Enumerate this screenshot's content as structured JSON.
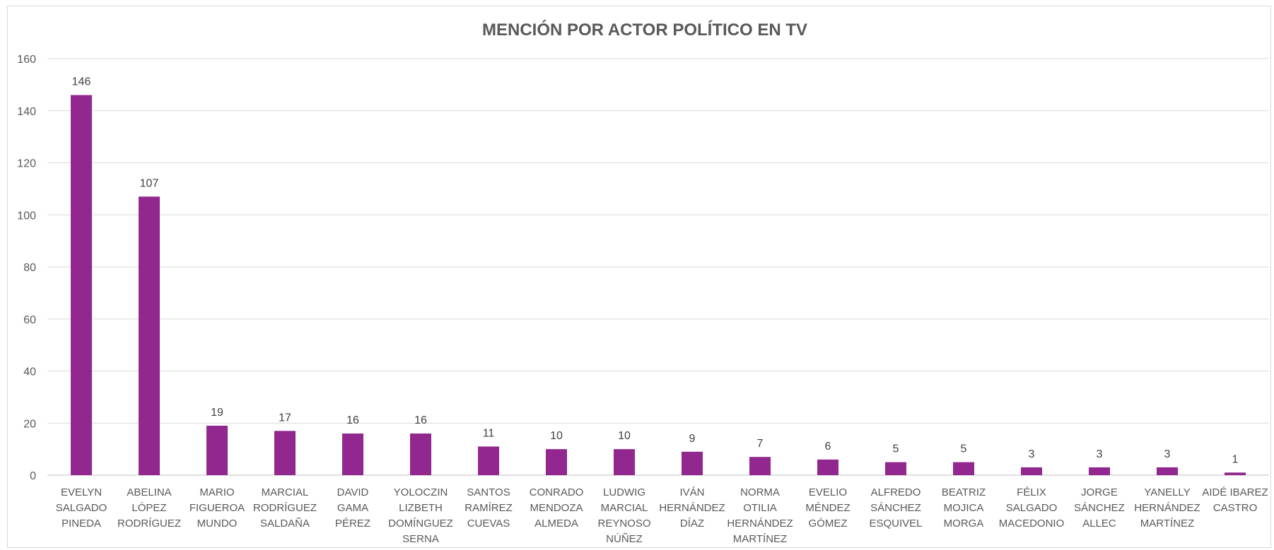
{
  "chart_data": {
    "type": "bar",
    "title": "MENCIÓN POR ACTOR POLÍTICO EN TV",
    "xlabel": "",
    "ylabel": "",
    "ylim": [
      0,
      160
    ],
    "yticks": [
      0,
      20,
      40,
      60,
      80,
      100,
      120,
      140,
      160
    ],
    "grid": true,
    "legend": "none",
    "bar_color": "#92278f",
    "categories": [
      [
        "EVELYN",
        "SALGADO",
        "PINEDA"
      ],
      [
        "ABELINA",
        "LÓPEZ",
        "RODRÍGUEZ"
      ],
      [
        "MARIO",
        "FIGUEROA",
        "MUNDO"
      ],
      [
        "MARCIAL",
        "RODRÍGUEZ",
        "SALDAÑA"
      ],
      [
        "DAVID",
        "GAMA",
        "PÉREZ"
      ],
      [
        "YOLOCZIN",
        "LIZBETH",
        "DOMÍNGUEZ",
        "SERNA"
      ],
      [
        "SANTOS",
        "RAMÍREZ",
        "CUEVAS"
      ],
      [
        "CONRADO",
        "MENDOZA",
        "ALMEDA"
      ],
      [
        "LUDWIG",
        "MARCIAL",
        "REYNOSO",
        "NÚÑEZ"
      ],
      [
        "IVÁN",
        "HERNÁNDEZ",
        "DÍAZ"
      ],
      [
        "NORMA",
        "OTILIA",
        "HERNÁNDEZ",
        "MARTÍNEZ"
      ],
      [
        "EVELIO",
        "MÉNDEZ",
        "GÓMEZ"
      ],
      [
        "ALFREDO",
        "SÁNCHEZ",
        "ESQUIVEL"
      ],
      [
        "BEATRIZ",
        "MOJICA",
        "MORGA"
      ],
      [
        "FÉLIX",
        "SALGADO",
        "MACEDONIO"
      ],
      [
        "JORGE",
        "SÁNCHEZ",
        "ALLEC"
      ],
      [
        "YANELLY",
        "HERNÁNDEZ",
        "MARTÍNEZ"
      ],
      [
        "AIDÉ IBAREZ",
        "CASTRO"
      ]
    ],
    "values": [
      146,
      107,
      19,
      17,
      16,
      16,
      11,
      10,
      10,
      9,
      7,
      6,
      5,
      5,
      3,
      3,
      3,
      1
    ]
  }
}
